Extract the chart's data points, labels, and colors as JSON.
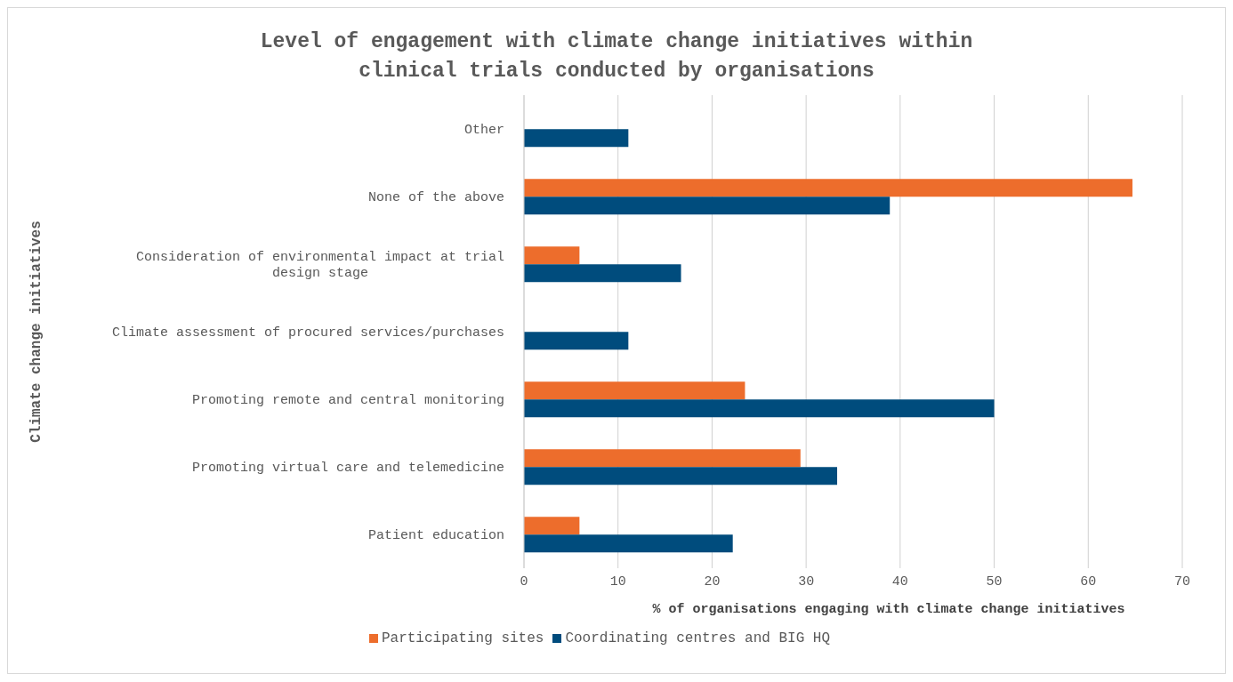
{
  "chart_data": {
    "type": "bar",
    "orientation": "horizontal",
    "title": "Level of engagement with climate change initiatives within\nclinical trials conducted by organisations",
    "xlabel": "% of  organisations engaging with climate change initiatives",
    "ylabel": "Climate change initiatives",
    "categories": [
      "Other",
      "None of the above",
      "Consideration of environmental impact at trial design stage",
      "Climate assessment of procured services/purchases",
      "Promoting remote and central monitoring",
      "Promoting virtual care and telemedicine",
      "Patient education"
    ],
    "series": [
      {
        "name": "Participating sites",
        "color": "#ed6d2c",
        "values": [
          null,
          64.7,
          5.9,
          null,
          23.5,
          29.4,
          5.9
        ]
      },
      {
        "name": "Coordinating centres and BIG HQ",
        "color": "#004c7d",
        "values": [
          11.1,
          38.9,
          16.7,
          11.1,
          50,
          33.3,
          22.2
        ]
      }
    ],
    "xlim": [
      0,
      70
    ],
    "xticks": [
      0,
      10,
      20,
      30,
      40,
      50,
      60,
      70
    ],
    "grid": "x",
    "legend": "bottom"
  }
}
